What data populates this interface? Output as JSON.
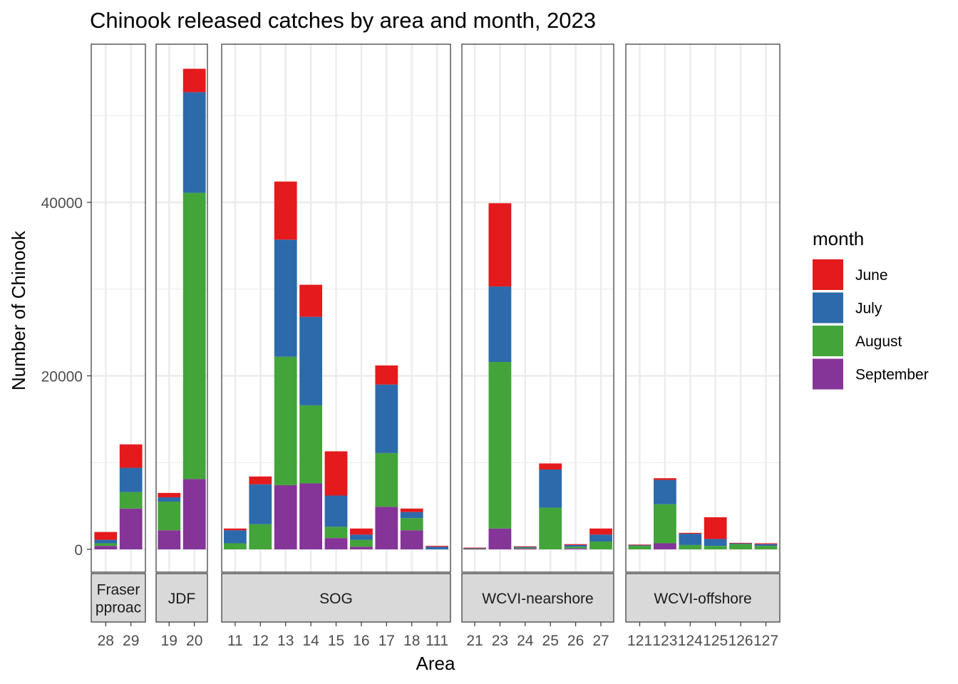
{
  "chart_data": {
    "type": "bar",
    "stacked": true,
    "title": "Chinook released catches by area and month, 2023",
    "xlabel": "Area",
    "ylabel": "Number of Chinook",
    "ylim": [
      -1000,
      58000
    ],
    "y_ticks": [
      0,
      20000,
      40000
    ],
    "y_tick_labels": [
      "0",
      "20000",
      "40000"
    ],
    "grid": true,
    "legend_position": "right",
    "legend": {
      "title": "month",
      "entries": [
        {
          "label": "June",
          "color": "#E41A1C"
        },
        {
          "label": "July",
          "color": "#2C6AAB"
        },
        {
          "label": "August",
          "color": "#43A43A"
        },
        {
          "label": "September",
          "color": "#853497"
        }
      ]
    },
    "stack_order_bottom_to_top": [
      "September",
      "August",
      "July",
      "June"
    ],
    "facets": [
      {
        "label_lines": [
          "Fraser",
          "pproac"
        ],
        "categories": [
          "28",
          "29"
        ],
        "series": {
          "September": [
            400,
            4700
          ],
          "August": [
            300,
            1900
          ],
          "July": [
            400,
            2800
          ],
          "June": [
            900,
            2700
          ]
        }
      },
      {
        "label_lines": [
          "JDF"
        ],
        "categories": [
          "19",
          "20"
        ],
        "series": {
          "September": [
            2200,
            8100
          ],
          "August": [
            3300,
            33000
          ],
          "July": [
            500,
            11600
          ],
          "June": [
            500,
            2700
          ]
        }
      },
      {
        "label_lines": [
          "SOG"
        ],
        "categories": [
          "11",
          "12",
          "13",
          "14",
          "15",
          "16",
          "17",
          "18",
          "111"
        ],
        "series": {
          "September": [
            0,
            0,
            7400,
            7600,
            1300,
            300,
            4900,
            2200,
            0
          ],
          "August": [
            700,
            2900,
            14800,
            9000,
            1300,
            800,
            6200,
            1400,
            0
          ],
          "July": [
            1500,
            4600,
            13500,
            10200,
            3600,
            600,
            7900,
            700,
            300
          ],
          "June": [
            200,
            900,
            6700,
            3700,
            5100,
            700,
            2200,
            400,
            100
          ]
        }
      },
      {
        "label_lines": [
          "WCVI-nearshore"
        ],
        "categories": [
          "21",
          "23",
          "24",
          "25",
          "26",
          "27"
        ],
        "series": {
          "September": [
            50,
            2400,
            100,
            0,
            100,
            0
          ],
          "August": [
            50,
            19200,
            100,
            4800,
            200,
            900
          ],
          "July": [
            50,
            8700,
            100,
            4400,
            200,
            800
          ],
          "June": [
            50,
            9600,
            50,
            700,
            100,
            700
          ]
        }
      },
      {
        "label_lines": [
          "WCVI-offshore"
        ],
        "categories": [
          "121",
          "123",
          "124",
          "125",
          "126",
          "127"
        ],
        "series": {
          "September": [
            0,
            700,
            0,
            0,
            0,
            0
          ],
          "August": [
            400,
            4500,
            500,
            400,
            600,
            400
          ],
          "July": [
            100,
            2800,
            1300,
            800,
            100,
            200
          ],
          "June": [
            50,
            200,
            100,
            2500,
            50,
            100
          ]
        }
      }
    ]
  }
}
